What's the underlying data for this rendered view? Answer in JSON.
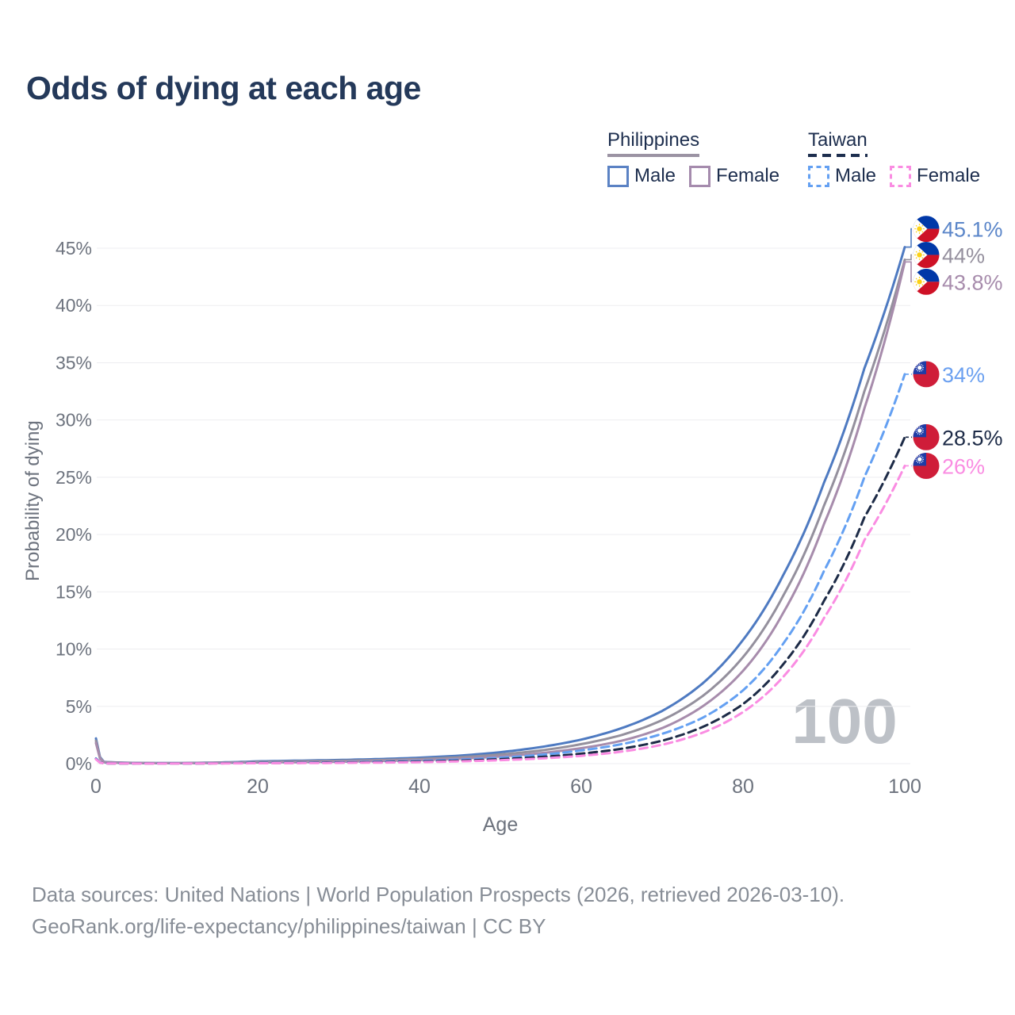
{
  "title": "Odds of dying at each age",
  "legend": {
    "groups": [
      {
        "name": "Philippines",
        "line_style": "solid",
        "underline_color": "#9b93a3",
        "items": [
          {
            "label": "Male",
            "color": "#5b82c4"
          },
          {
            "label": "Female",
            "color": "#a58bad"
          }
        ]
      },
      {
        "name": "Taiwan",
        "line_style": "dashed",
        "underline_color": "#1d2e4e",
        "items": [
          {
            "label": "Male",
            "color": "#64a0f2"
          },
          {
            "label": "Female",
            "color": "#fa8ce2"
          }
        ]
      }
    ]
  },
  "axes": {
    "xlabel": "Age",
    "ylabel": "Probability of dying",
    "x_ticks": [
      0,
      20,
      40,
      60,
      80,
      100
    ],
    "y_tick_labels": [
      "0%",
      "5%",
      "10%",
      "15%",
      "20%",
      "25%",
      "30%",
      "35%",
      "40%",
      "45%"
    ],
    "xlim": [
      0,
      100
    ],
    "ylim_pct": [
      0,
      45
    ],
    "grid": "horizontal"
  },
  "watermark": "100",
  "footer": {
    "line1": "Data sources: United Nations | World Population Prospects (2026, retrieved 2026-03-10).",
    "line2": "GeoRank.org/life-expectancy/philippines/taiwan | CC BY"
  },
  "chart_data": {
    "type": "line",
    "title": "Odds of dying at each age",
    "xlabel": "Age",
    "ylabel": "Probability of dying (%)",
    "legend_position": "top-right",
    "anchor_ages": [
      0,
      1,
      5,
      10,
      15,
      20,
      25,
      30,
      35,
      40,
      45,
      50,
      55,
      60,
      65,
      70,
      75,
      80,
      85,
      90,
      95,
      100
    ],
    "series": [
      {
        "name": "Philippines Male",
        "country": "Philippines",
        "sex": "male",
        "flag": "ph",
        "dashed": false,
        "color": "#4e7ac1",
        "label_color": "#5b86c9",
        "end_label": "45.1%",
        "end_value_pct": 45.1,
        "values_pct": [
          2.2,
          0.15,
          0.06,
          0.05,
          0.1,
          0.2,
          0.26,
          0.32,
          0.4,
          0.52,
          0.7,
          1.0,
          1.45,
          2.1,
          3.1,
          4.6,
          7.0,
          10.8,
          16.5,
          24.5,
          34.5,
          45.1
        ]
      },
      {
        "name": "Philippines All",
        "country": "Philippines",
        "sex": "all",
        "flag": "ph",
        "dashed": false,
        "color": "#94909d",
        "label_color": "#95909e",
        "end_label": "44%",
        "end_value_pct": 44.0,
        "values_pct": [
          2.0,
          0.13,
          0.05,
          0.04,
          0.08,
          0.15,
          0.2,
          0.25,
          0.31,
          0.41,
          0.56,
          0.8,
          1.15,
          1.7,
          2.5,
          3.8,
          5.9,
          9.3,
          14.7,
          22.5,
          32.5,
          44.0
        ]
      },
      {
        "name": "Philippines Female",
        "country": "Philippines",
        "sex": "female",
        "flag": "ph",
        "dashed": false,
        "color": "#a78cac",
        "label_color": "#a78cac",
        "end_label": "43.8%",
        "end_value_pct": 43.8,
        "values_pct": [
          1.8,
          0.11,
          0.04,
          0.035,
          0.06,
          0.1,
          0.13,
          0.17,
          0.23,
          0.31,
          0.43,
          0.63,
          0.92,
          1.35,
          2.0,
          3.1,
          5.0,
          8.1,
          13.2,
          20.9,
          31.0,
          43.8
        ]
      },
      {
        "name": "Taiwan Male",
        "country": "Taiwan",
        "sex": "male",
        "flag": "tw",
        "dashed": true,
        "color": "#64a0f2",
        "label_color": "#6ba0f0",
        "end_label": "34%",
        "end_value_pct": 34.0,
        "values_pct": [
          0.45,
          0.03,
          0.015,
          0.015,
          0.035,
          0.07,
          0.09,
          0.12,
          0.17,
          0.24,
          0.35,
          0.52,
          0.77,
          1.15,
          1.7,
          2.6,
          4.0,
          6.4,
          10.5,
          16.8,
          25.0,
          34.0
        ]
      },
      {
        "name": "Taiwan All",
        "country": "Taiwan",
        "sex": "all",
        "flag": "tw",
        "dashed": true,
        "color": "#1d2b47",
        "label_color": "#1d2b47",
        "end_label": "28.5%",
        "end_value_pct": 28.5,
        "values_pct": [
          0.4,
          0.025,
          0.012,
          0.012,
          0.028,
          0.05,
          0.065,
          0.09,
          0.125,
          0.18,
          0.26,
          0.39,
          0.58,
          0.87,
          1.3,
          2.0,
          3.2,
          5.2,
          8.7,
          14.2,
          21.5,
          28.5
        ]
      },
      {
        "name": "Taiwan Female",
        "country": "Taiwan",
        "sex": "female",
        "flag": "tw",
        "dashed": true,
        "color": "#fa8ce2",
        "label_color": "#fa8ce2",
        "end_label": "26%",
        "end_value_pct": 26.0,
        "values_pct": [
          0.38,
          0.022,
          0.01,
          0.01,
          0.02,
          0.035,
          0.045,
          0.065,
          0.09,
          0.13,
          0.2,
          0.3,
          0.45,
          0.68,
          1.05,
          1.65,
          2.7,
          4.5,
          7.6,
          12.7,
          19.5,
          26.0
        ]
      }
    ],
    "flag_colors": {
      "ph_blue": "#0038a8",
      "ph_red": "#ce1126",
      "ph_sun": "#fcd116",
      "tw_red": "#cf1d39",
      "tw_blue": "#1f3ca6"
    },
    "grid_color": "#ededf0",
    "tick_color": "#6d737e"
  }
}
